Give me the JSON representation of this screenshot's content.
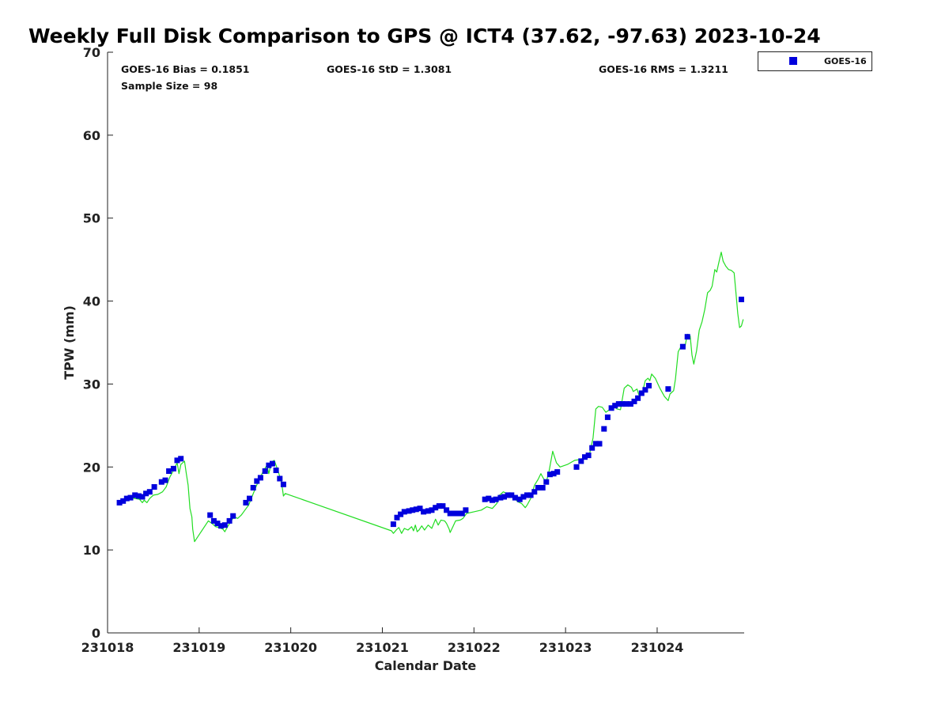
{
  "chart_data": {
    "type": "scatter",
    "title": "Weekly Full Disk Comparison to GPS @ ICT4 (37.62, -97.63) 2023-10-24",
    "xlabel": "Calendar Date",
    "ylabel": "TPW (mm)",
    "xlim": [
      0,
      6.95
    ],
    "ylim": [
      0,
      70
    ],
    "x_tick_labels": [
      "231018",
      "231019",
      "231020",
      "231021",
      "231022",
      "231023",
      "231024"
    ],
    "y_ticks": [
      0,
      10,
      20,
      30,
      40,
      50,
      60,
      70
    ],
    "x_unit_note": "x values are days after 231018 00Z",
    "legend_position": "outside-top-right",
    "grid": false,
    "stats": {
      "bias": "GOES-16 Bias = 0.1851",
      "std": "GOES-16 StD = 1.3081",
      "rms": "GOES-16 RMS = 1.3211",
      "sample": "Sample Size = 98"
    },
    "series": [
      {
        "name": "GOES-16",
        "kind": "scatter",
        "marker": "square",
        "color": "#0000dd",
        "points": [
          [
            0.13,
            15.7
          ],
          [
            0.17,
            15.9
          ],
          [
            0.21,
            16.2
          ],
          [
            0.25,
            16.3
          ],
          [
            0.3,
            16.6
          ],
          [
            0.34,
            16.5
          ],
          [
            0.38,
            16.4
          ],
          [
            0.42,
            16.8
          ],
          [
            0.46,
            17.0
          ],
          [
            0.51,
            17.6
          ],
          [
            0.59,
            18.2
          ],
          [
            0.63,
            18.4
          ],
          [
            0.67,
            19.5
          ],
          [
            0.72,
            19.8
          ],
          [
            0.76,
            20.8
          ],
          [
            0.8,
            21.0
          ],
          [
            1.12,
            14.2
          ],
          [
            1.16,
            13.5
          ],
          [
            1.2,
            13.2
          ],
          [
            1.24,
            12.9
          ],
          [
            1.28,
            13.0
          ],
          [
            1.33,
            13.5
          ],
          [
            1.37,
            14.1
          ],
          [
            1.51,
            15.7
          ],
          [
            1.55,
            16.2
          ],
          [
            1.59,
            17.5
          ],
          [
            1.63,
            18.3
          ],
          [
            1.67,
            18.7
          ],
          [
            1.72,
            19.5
          ],
          [
            1.76,
            20.2
          ],
          [
            1.8,
            20.4
          ],
          [
            1.84,
            19.6
          ],
          [
            1.88,
            18.6
          ],
          [
            1.92,
            17.9
          ],
          [
            3.12,
            13.1
          ],
          [
            3.16,
            13.9
          ],
          [
            3.2,
            14.3
          ],
          [
            3.24,
            14.6
          ],
          [
            3.29,
            14.7
          ],
          [
            3.33,
            14.8
          ],
          [
            3.37,
            14.9
          ],
          [
            3.41,
            15.0
          ],
          [
            3.45,
            14.6
          ],
          [
            3.5,
            14.7
          ],
          [
            3.54,
            14.8
          ],
          [
            3.58,
            15.1
          ],
          [
            3.62,
            15.3
          ],
          [
            3.66,
            15.3
          ],
          [
            3.7,
            14.8
          ],
          [
            3.74,
            14.4
          ],
          [
            3.78,
            14.4
          ],
          [
            3.83,
            14.4
          ],
          [
            3.87,
            14.4
          ],
          [
            3.91,
            14.8
          ],
          [
            4.12,
            16.1
          ],
          [
            4.16,
            16.2
          ],
          [
            4.2,
            16.0
          ],
          [
            4.24,
            16.1
          ],
          [
            4.29,
            16.3
          ],
          [
            4.33,
            16.4
          ],
          [
            4.37,
            16.6
          ],
          [
            4.41,
            16.6
          ],
          [
            4.45,
            16.3
          ],
          [
            4.5,
            16.1
          ],
          [
            4.54,
            16.4
          ],
          [
            4.58,
            16.6
          ],
          [
            4.62,
            16.6
          ],
          [
            4.66,
            17.0
          ],
          [
            4.7,
            17.5
          ],
          [
            4.75,
            17.5
          ],
          [
            4.79,
            18.2
          ],
          [
            4.83,
            19.1
          ],
          [
            4.87,
            19.2
          ],
          [
            4.91,
            19.4
          ],
          [
            5.12,
            20.0
          ],
          [
            5.17,
            20.7
          ],
          [
            5.21,
            21.2
          ],
          [
            5.25,
            21.4
          ],
          [
            5.29,
            22.3
          ],
          [
            5.33,
            22.8
          ],
          [
            5.37,
            22.8
          ],
          [
            5.42,
            24.6
          ],
          [
            5.46,
            26.0
          ],
          [
            5.5,
            27.1
          ],
          [
            5.54,
            27.4
          ],
          [
            5.58,
            27.6
          ],
          [
            5.62,
            27.6
          ],
          [
            5.66,
            27.6
          ],
          [
            5.71,
            27.6
          ],
          [
            5.75,
            27.9
          ],
          [
            5.79,
            28.3
          ],
          [
            5.83,
            28.9
          ],
          [
            5.87,
            29.3
          ],
          [
            5.91,
            29.8
          ],
          [
            6.12,
            29.4
          ],
          [
            6.28,
            34.5
          ],
          [
            6.33,
            35.7
          ],
          [
            6.92,
            40.2
          ]
        ]
      },
      {
        "name": "GPS",
        "kind": "line",
        "color": "#22dd22",
        "points": [
          [
            0.12,
            15.5
          ],
          [
            0.16,
            15.7
          ],
          [
            0.2,
            16.0
          ],
          [
            0.25,
            16.3
          ],
          [
            0.3,
            16.2
          ],
          [
            0.35,
            16.1
          ],
          [
            0.38,
            15.7
          ],
          [
            0.4,
            16.0
          ],
          [
            0.43,
            15.7
          ],
          [
            0.46,
            16.2
          ],
          [
            0.5,
            16.6
          ],
          [
            0.55,
            16.7
          ],
          [
            0.6,
            17.0
          ],
          [
            0.64,
            17.6
          ],
          [
            0.68,
            18.8
          ],
          [
            0.72,
            19.6
          ],
          [
            0.76,
            20.5
          ],
          [
            0.78,
            19.2
          ],
          [
            0.8,
            20.3
          ],
          [
            0.84,
            20.7
          ],
          [
            0.86,
            19.2
          ],
          [
            0.88,
            17.8
          ],
          [
            0.9,
            15.0
          ],
          [
            0.92,
            14.0
          ],
          [
            0.93,
            12.5
          ],
          [
            0.95,
            11.0
          ],
          [
            1.1,
            13.5
          ],
          [
            1.14,
            13.2
          ],
          [
            1.18,
            12.8
          ],
          [
            1.22,
            12.7
          ],
          [
            1.26,
            12.5
          ],
          [
            1.28,
            12.2
          ],
          [
            1.31,
            12.8
          ],
          [
            1.35,
            13.5
          ],
          [
            1.38,
            14.0
          ],
          [
            1.42,
            13.8
          ],
          [
            1.46,
            14.2
          ],
          [
            1.5,
            14.8
          ],
          [
            1.54,
            15.4
          ],
          [
            1.58,
            16.5
          ],
          [
            1.62,
            17.6
          ],
          [
            1.66,
            18.6
          ],
          [
            1.7,
            19.5
          ],
          [
            1.74,
            20.2
          ],
          [
            1.76,
            19.2
          ],
          [
            1.79,
            20.6
          ],
          [
            1.82,
            20.8
          ],
          [
            1.86,
            19.6
          ],
          [
            1.9,
            18.1
          ],
          [
            1.92,
            16.5
          ],
          [
            1.94,
            16.8
          ],
          [
            3.1,
            12.3
          ],
          [
            3.12,
            12.0
          ],
          [
            3.16,
            12.5
          ],
          [
            3.18,
            12.7
          ],
          [
            3.21,
            12.0
          ],
          [
            3.24,
            12.6
          ],
          [
            3.28,
            12.4
          ],
          [
            3.32,
            12.8
          ],
          [
            3.34,
            12.3
          ],
          [
            3.36,
            13.0
          ],
          [
            3.38,
            12.2
          ],
          [
            3.4,
            12.4
          ],
          [
            3.43,
            12.9
          ],
          [
            3.46,
            12.4
          ],
          [
            3.5,
            13.0
          ],
          [
            3.54,
            12.6
          ],
          [
            3.58,
            13.7
          ],
          [
            3.61,
            13.0
          ],
          [
            3.64,
            13.6
          ],
          [
            3.68,
            13.5
          ],
          [
            3.7,
            13.2
          ],
          [
            3.73,
            12.5
          ],
          [
            3.74,
            12.1
          ],
          [
            3.77,
            12.8
          ],
          [
            3.8,
            13.5
          ],
          [
            3.85,
            13.6
          ],
          [
            3.88,
            13.8
          ],
          [
            3.92,
            14.4
          ],
          [
            4.0,
            14.6
          ],
          [
            4.08,
            14.8
          ],
          [
            4.14,
            15.2
          ],
          [
            4.2,
            15.0
          ],
          [
            4.25,
            15.6
          ],
          [
            4.28,
            16.6
          ],
          [
            4.32,
            17.0
          ],
          [
            4.36,
            16.8
          ],
          [
            4.4,
            16.5
          ],
          [
            4.44,
            16.2
          ],
          [
            4.48,
            15.8
          ],
          [
            4.52,
            15.6
          ],
          [
            4.56,
            15.1
          ],
          [
            4.58,
            15.4
          ],
          [
            4.62,
            16.2
          ],
          [
            4.66,
            17.8
          ],
          [
            4.7,
            18.5
          ],
          [
            4.73,
            19.2
          ],
          [
            4.76,
            18.6
          ],
          [
            4.79,
            18.2
          ],
          [
            4.82,
            19.5
          ],
          [
            4.86,
            21.9
          ],
          [
            4.9,
            20.5
          ],
          [
            4.94,
            20.0
          ],
          [
            5.02,
            20.3
          ],
          [
            5.1,
            20.8
          ],
          [
            5.16,
            20.9
          ],
          [
            5.22,
            21.2
          ],
          [
            5.26,
            21.5
          ],
          [
            5.3,
            23.5
          ],
          [
            5.33,
            27.0
          ],
          [
            5.36,
            27.3
          ],
          [
            5.4,
            27.2
          ],
          [
            5.44,
            26.6
          ],
          [
            5.48,
            26.9
          ],
          [
            5.52,
            27.4
          ],
          [
            5.56,
            27.0
          ],
          [
            5.6,
            26.9
          ],
          [
            5.64,
            29.5
          ],
          [
            5.68,
            29.9
          ],
          [
            5.72,
            29.6
          ],
          [
            5.74,
            29.1
          ],
          [
            5.78,
            29.4
          ],
          [
            5.8,
            28.7
          ],
          [
            5.84,
            29.0
          ],
          [
            5.87,
            30.4
          ],
          [
            5.9,
            30.7
          ],
          [
            5.92,
            30.4
          ],
          [
            5.94,
            31.2
          ],
          [
            5.98,
            30.7
          ],
          [
            6.03,
            29.5
          ],
          [
            6.08,
            28.5
          ],
          [
            6.12,
            28.0
          ],
          [
            6.14,
            28.8
          ],
          [
            6.18,
            29.2
          ],
          [
            6.2,
            30.6
          ],
          [
            6.23,
            33.9
          ],
          [
            6.26,
            34.5
          ],
          [
            6.3,
            34.3
          ],
          [
            6.33,
            36.0
          ],
          [
            6.36,
            35.8
          ],
          [
            6.38,
            33.5
          ],
          [
            6.4,
            32.4
          ],
          [
            6.43,
            34.0
          ],
          [
            6.46,
            36.5
          ],
          [
            6.49,
            37.5
          ],
          [
            6.52,
            39.0
          ],
          [
            6.55,
            41.0
          ],
          [
            6.58,
            41.3
          ],
          [
            6.6,
            41.8
          ],
          [
            6.63,
            43.8
          ],
          [
            6.65,
            43.5
          ],
          [
            6.67,
            44.5
          ],
          [
            6.7,
            45.9
          ],
          [
            6.72,
            44.8
          ],
          [
            6.75,
            44.2
          ],
          [
            6.78,
            43.8
          ],
          [
            6.81,
            43.7
          ],
          [
            6.84,
            43.4
          ],
          [
            6.86,
            41.0
          ],
          [
            6.88,
            38.5
          ],
          [
            6.9,
            36.8
          ],
          [
            6.92,
            37.0
          ],
          [
            6.94,
            37.8
          ]
        ]
      }
    ]
  }
}
